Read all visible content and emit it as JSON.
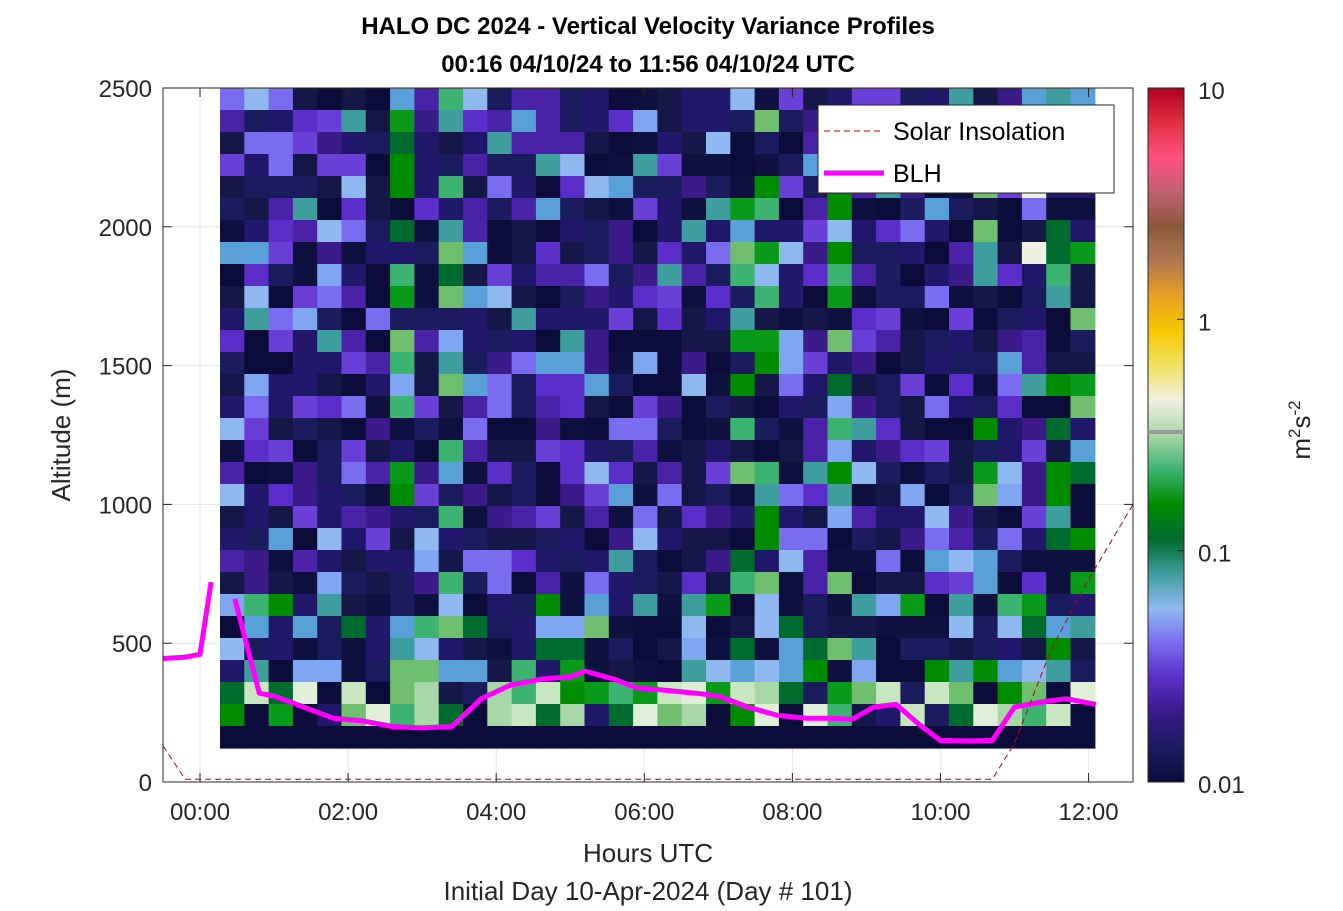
{
  "chart_data": {
    "type": "heatmap",
    "title": "HALO DC 2024 - Vertical Velocity Variance Profiles",
    "subtitle": "00:16 04/10/24 to 11:56 04/10/24  UTC",
    "xlabel": "Hours UTC",
    "xlabel2": "Initial Day 10-Apr-2024 (Day # 101)",
    "ylabel": "Altitude (m)",
    "xlim": [
      -0.5,
      12.6
    ],
    "ylim": [
      0,
      2500
    ],
    "x_ticks": [
      "00:00",
      "02:00",
      "04:00",
      "06:00",
      "08:00",
      "10:00",
      "12:00"
    ],
    "x_tick_values": [
      0,
      2,
      4,
      6,
      8,
      10,
      12
    ],
    "y_ticks": [
      "0",
      "500",
      "1000",
      "1500",
      "2000",
      "2500"
    ],
    "y_tick_values": [
      0,
      500,
      1000,
      1500,
      2000,
      2500
    ],
    "grid": true,
    "colorbar": {
      "label": "m²s⁻²",
      "label_base": "m",
      "label_exp1": "2",
      "label_mid": "s",
      "label_exp2": "-2",
      "scale": "log",
      "range": [
        0.01,
        10
      ],
      "tick_labels": [
        "0.01",
        "0.1",
        "1",
        "10"
      ],
      "tick_values": [
        0.01,
        0.1,
        1,
        10
      ],
      "colors": [
        "#0b0c3a",
        "#1a1c5e",
        "#3b1a8a",
        "#5b2ec9",
        "#7a6cf0",
        "#8fb8f0",
        "#3e9e9e",
        "#006b2e",
        "#008c00",
        "#3cb371",
        "#a8d8a8",
        "#f0f0e0",
        "#f0e060",
        "#f5c800",
        "#e8a020",
        "#b07850",
        "#8b5a3c",
        "#c06070",
        "#ff5080",
        "#e03040",
        "#b00020"
      ]
    },
    "heatmap_x_range": [
      0.27,
      12.0
    ],
    "heatmap_y_range": [
      100,
      2500
    ],
    "legend": {
      "position": "top-right",
      "entries": [
        "Solar Insolation",
        "BLH"
      ]
    },
    "series": [
      {
        "name": "BLH",
        "color": "#ff00ff",
        "segments": [
          [
            [
              -0.5,
              445
            ],
            [
              -0.2,
              450
            ],
            [
              0.0,
              460
            ],
            [
              0.15,
              720
            ]
          ],
          [
            [
              0.47,
              660
            ],
            [
              0.8,
              320
            ],
            [
              1.0,
              310
            ],
            [
              1.4,
              270
            ],
            [
              1.8,
              230
            ],
            [
              2.2,
              220
            ],
            [
              2.6,
              200
            ],
            [
              3.0,
              195
            ],
            [
              3.4,
              200
            ],
            [
              3.8,
              300
            ],
            [
              4.2,
              350
            ],
            [
              4.6,
              370
            ],
            [
              5.0,
              380
            ],
            [
              5.2,
              400
            ],
            [
              5.6,
              370
            ],
            [
              5.9,
              340
            ],
            [
              6.3,
              330
            ],
            [
              6.7,
              320
            ],
            [
              7.0,
              310
            ],
            [
              7.4,
              270
            ],
            [
              7.8,
              240
            ],
            [
              8.2,
              230
            ],
            [
              8.6,
              230
            ],
            [
              8.8,
              225
            ],
            [
              9.1,
              270
            ],
            [
              9.4,
              280
            ],
            [
              9.7,
              210
            ],
            [
              10.0,
              150
            ],
            [
              10.4,
              148
            ],
            [
              10.7,
              150
            ],
            [
              11.0,
              270
            ],
            [
              11.4,
              290
            ],
            [
              11.7,
              300
            ],
            [
              12.1,
              280
            ]
          ]
        ]
      },
      {
        "name": "Solar Insolation",
        "color": "#c00000",
        "style": "dashed",
        "values": [
          [
            -0.5,
            130
          ],
          [
            -0.2,
            10
          ],
          [
            0,
            10
          ],
          [
            10.7,
            10
          ],
          [
            11.0,
            140
          ],
          [
            11.5,
            480
          ],
          [
            12.0,
            730
          ],
          [
            12.6,
            1000
          ]
        ]
      }
    ],
    "white_cells_note": "",
    "missing_color": "#ffffff"
  }
}
